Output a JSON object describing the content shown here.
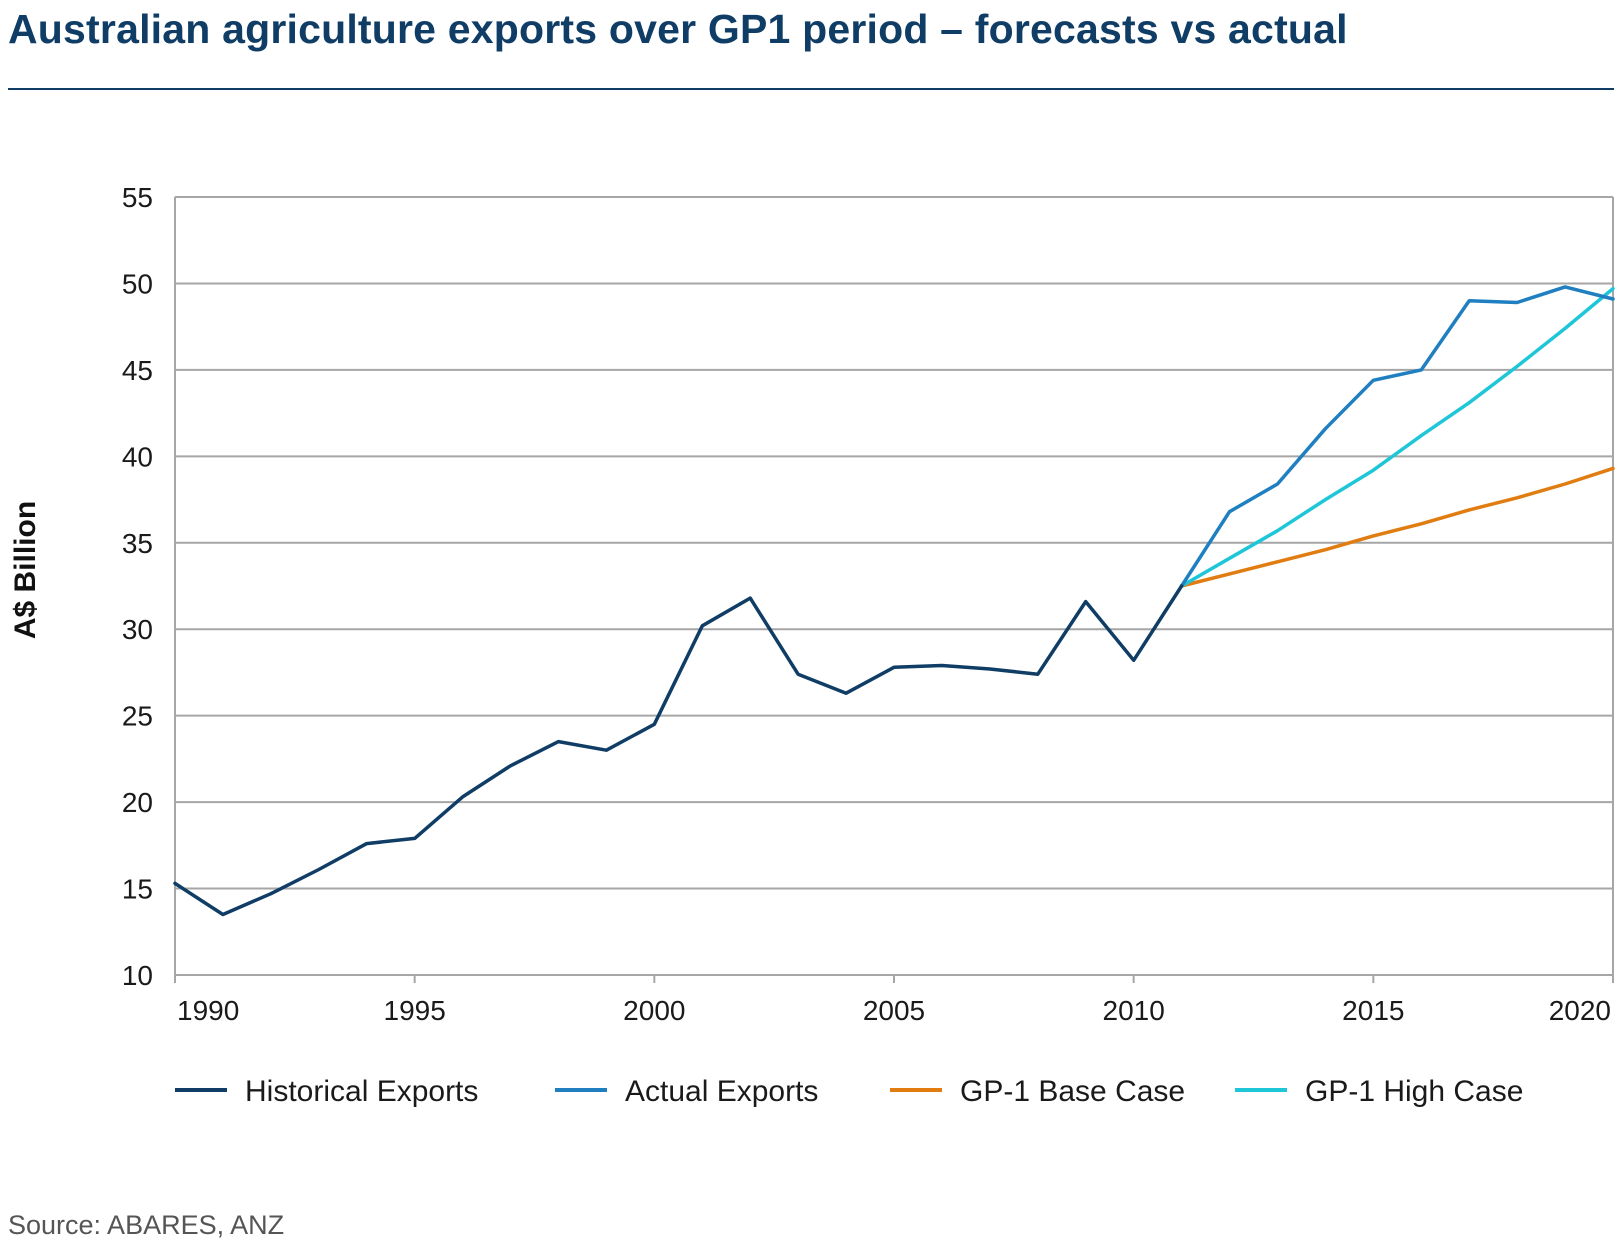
{
  "title": "Australian agriculture exports over GP1 period – forecasts vs actual",
  "source": "Source: ABARES, ANZ",
  "colors": {
    "historical": "#0f3d66",
    "actual": "#1f7fc0",
    "base": "#e07c10",
    "high": "#1ec6d8",
    "grid": "#a6a6a6",
    "title": "#0f3d66"
  },
  "chart_data": {
    "type": "line",
    "ylabel": "A$ Billion",
    "xlabel": "",
    "xlim": [
      1990,
      2020
    ],
    "ylim": [
      10,
      55
    ],
    "yticks": [
      10,
      15,
      20,
      25,
      30,
      35,
      40,
      45,
      50,
      55
    ],
    "xticks": [
      1990,
      1995,
      2000,
      2005,
      2010,
      2015,
      2020
    ],
    "grid": true,
    "legend_position": "bottom",
    "series": [
      {
        "name": "Historical Exports",
        "color": "#0f3d66",
        "x": [
          1990,
          1991,
          1992,
          1993,
          1994,
          1995,
          1996,
          1997,
          1998,
          1999,
          2000,
          2001,
          2002,
          2003,
          2004,
          2005,
          2006,
          2007,
          2008,
          2009,
          2010,
          2011
        ],
        "y": [
          15.3,
          13.5,
          14.7,
          16.1,
          17.6,
          17.9,
          20.3,
          22.1,
          23.5,
          23.0,
          24.5,
          30.2,
          31.8,
          27.4,
          26.3,
          27.8,
          27.9,
          27.7,
          27.4,
          31.6,
          28.2,
          32.5
        ]
      },
      {
        "name": "Actual Exports",
        "color": "#1f7fc0",
        "x": [
          2011,
          2012,
          2013,
          2014,
          2015,
          2016,
          2017,
          2018,
          2019,
          2020
        ],
        "y": [
          32.5,
          36.8,
          38.4,
          41.6,
          44.4,
          45.0,
          49.0,
          48.9,
          49.8,
          49.1
        ]
      },
      {
        "name": "GP-1 Base Case",
        "color": "#e07c10",
        "x": [
          2011,
          2012,
          2013,
          2014,
          2015,
          2016,
          2017,
          2018,
          2019,
          2020
        ],
        "y": [
          32.5,
          33.2,
          33.9,
          34.6,
          35.4,
          36.1,
          36.9,
          37.6,
          38.4,
          39.3
        ]
      },
      {
        "name": "GP-1 High Case",
        "color": "#1ec6d8",
        "x": [
          2011,
          2012,
          2013,
          2014,
          2015,
          2016,
          2017,
          2018,
          2019,
          2020
        ],
        "y": [
          32.5,
          34.1,
          35.7,
          37.5,
          39.2,
          41.2,
          43.1,
          45.2,
          47.4,
          49.7
        ]
      }
    ]
  }
}
